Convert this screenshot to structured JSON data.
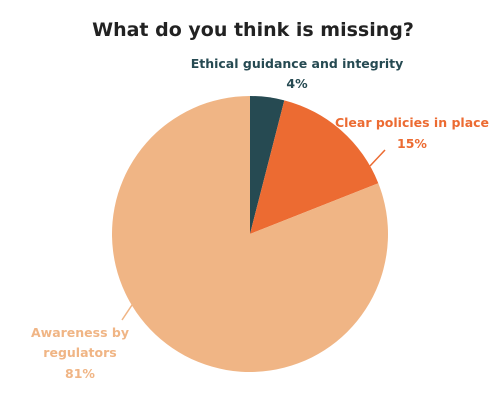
{
  "chart_data": {
    "type": "pie",
    "title": "What do you think is missing?",
    "slices": [
      {
        "label": "Ethical guidance and integrity",
        "value": 4,
        "value_label": "4%",
        "color": "#264a52"
      },
      {
        "label": "Clear policies in place",
        "value": 15,
        "value_label": "15%",
        "color": "#ec6b32"
      },
      {
        "label": "Awareness by regulators",
        "value": 81,
        "value_label": "81%",
        "color": "#f0b585"
      }
    ],
    "label_colors": [
      "#264a52",
      "#ec6b32",
      "#f0b585"
    ]
  }
}
